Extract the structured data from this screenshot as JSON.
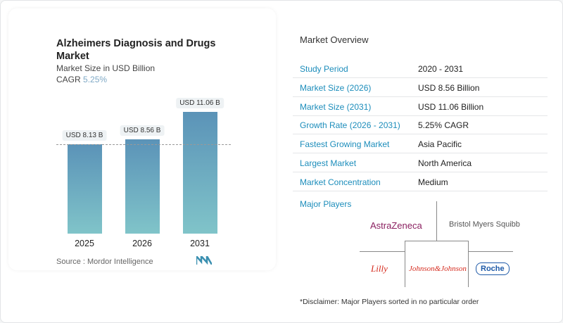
{
  "chart_data": {
    "type": "bar",
    "title": "Alzheimers Diagnosis and Drugs Market",
    "subtitle": "Market Size in USD Billion",
    "cagr_label": "CAGR",
    "cagr_value": "5.25%",
    "categories": [
      "2025",
      "2026",
      "2031"
    ],
    "values": [
      8.13,
      8.56,
      11.06
    ],
    "data_labels": [
      "USD 8.13 B",
      "USD 8.56 B",
      "USD 11.06 B"
    ],
    "ylim": [
      0,
      11.06
    ],
    "reference_line": 8.13,
    "colors": {
      "bar_top": "#5b93b8",
      "bar_bottom": "#80c4c9"
    }
  },
  "source": "Source :  Mordor Intelligence",
  "overview": {
    "title": "Market Overview",
    "rows": [
      {
        "k": "Study Period",
        "v": "2020 - 2031"
      },
      {
        "k": "Market Size (2026)",
        "v": "USD 8.56 Billion"
      },
      {
        "k": "Market Size (2031)",
        "v": "USD 11.06 Billion"
      },
      {
        "k": "Growth Rate (2026 - 2031)",
        "v": "5.25% CAGR"
      },
      {
        "k": "Fastest Growing Market",
        "v": "Asia Pacific"
      },
      {
        "k": "Largest Market",
        "v": "North America"
      },
      {
        "k": "Market Concentration",
        "v": "Medium"
      }
    ]
  },
  "players": {
    "title": "Major Players",
    "logos": [
      "AstraZeneca",
      "Bristol Myers Squibb",
      "Lilly",
      "Johnson&Johnson",
      "Roche"
    ]
  },
  "disclaimer": "*Disclaimer: Major Players sorted in no particular order"
}
